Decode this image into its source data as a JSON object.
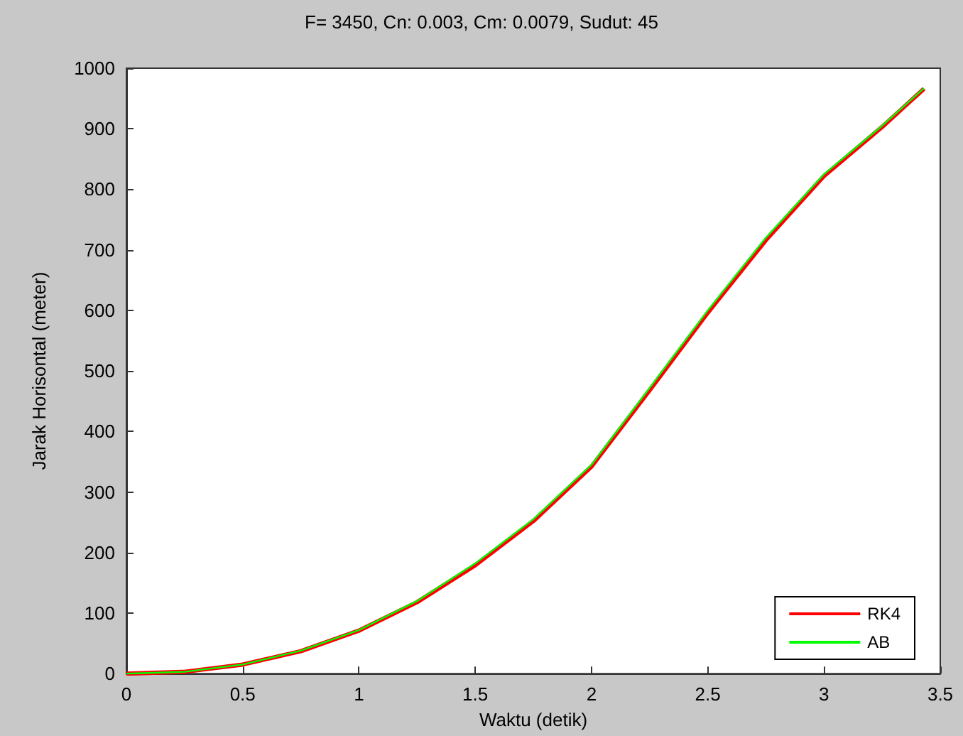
{
  "chart_data": {
    "type": "line",
    "title": "F= 3450, Cn: 0.003, Cm: 0.0079, Sudut: 45",
    "xlabel": "Waktu (detik)",
    "ylabel": "Jarak Horisontal (meter)",
    "x": [
      0,
      0.25,
      0.5,
      0.75,
      1,
      1.25,
      1.5,
      1.75,
      2,
      2.25,
      2.5,
      2.75,
      3,
      3.25,
      3.43
    ],
    "series": [
      {
        "name": "RK4",
        "color": "#ff0000",
        "values": [
          0,
          3,
          15,
          37,
          71,
          118,
          179,
          252,
          342,
          468,
          596,
          716,
          822,
          903,
          966
        ]
      },
      {
        "name": "AB",
        "color": "#00ff00",
        "values": [
          0,
          3,
          15,
          38,
          72,
          120,
          182,
          255,
          345,
          472,
          600,
          720,
          825,
          905,
          967
        ]
      }
    ],
    "xlim": [
      0,
      3.5
    ],
    "xticks": [
      0,
      0.5,
      1,
      1.5,
      2,
      2.5,
      3,
      3.5
    ],
    "ylim": [
      0,
      1000
    ],
    "yticks": [
      0,
      100,
      200,
      300,
      400,
      500,
      600,
      700,
      800,
      900,
      1000
    ],
    "grid": false,
    "legend": "bottom right",
    "marker": "none",
    "line_style": "solid"
  }
}
